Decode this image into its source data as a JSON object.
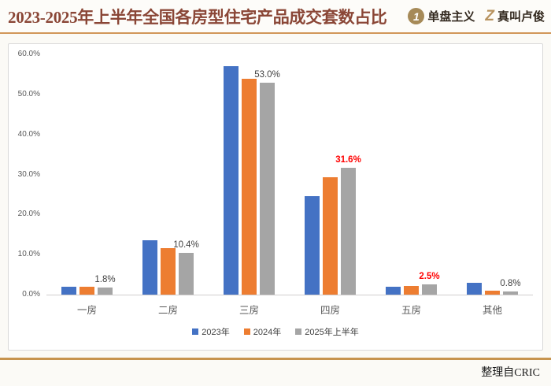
{
  "header": {
    "title": "2023-2025年上半年全国各房型住宅产品成交套数占比",
    "logo_danpan": {
      "icon": "1",
      "label": "单盘主义"
    },
    "logo_zhenjiao": {
      "icon": "Z",
      "label": "真叫卢俊"
    }
  },
  "footer": {
    "source": "整理自CRIC"
  },
  "colors": {
    "accent_line": "#c7944e",
    "title_text": "#8a4636",
    "red_label": "#ff0000",
    "axis_text": "#595959"
  },
  "chart_data": {
    "type": "bar",
    "title": "2023-2025年上半年全国各房型住宅产品成交套数占比",
    "categories": [
      "一房",
      "二房",
      "三房",
      "四房",
      "五房",
      "其他"
    ],
    "series": [
      {
        "name": "2023年",
        "color": "#4472C4",
        "values": [
          2.0,
          13.6,
          57.0,
          24.6,
          2.0,
          3.0
        ]
      },
      {
        "name": "2024年",
        "color": "#ED7D31",
        "values": [
          2.0,
          11.7,
          54.0,
          29.4,
          2.1,
          1.0
        ]
      },
      {
        "name": "2025年上半年",
        "color": "#A5A5A5",
        "values": [
          1.8,
          10.4,
          53.0,
          31.6,
          2.5,
          0.8
        ]
      }
    ],
    "data_labels": [
      {
        "text": "1.8%",
        "red": false
      },
      {
        "text": "10.4%",
        "red": false
      },
      {
        "text": "53.0%",
        "red": false
      },
      {
        "text": "31.6%",
        "red": true
      },
      {
        "text": "2.5%",
        "red": true
      },
      {
        "text": "0.8%",
        "red": false
      }
    ],
    "yticks": [
      "60.0%",
      "50.0%",
      "40.0%",
      "30.0%",
      "20.0%",
      "10.0%",
      "0.0%"
    ],
    "ylim": [
      0,
      60
    ],
    "xlabel": "",
    "ylabel": "",
    "grid": false,
    "legend_position": "bottom"
  }
}
